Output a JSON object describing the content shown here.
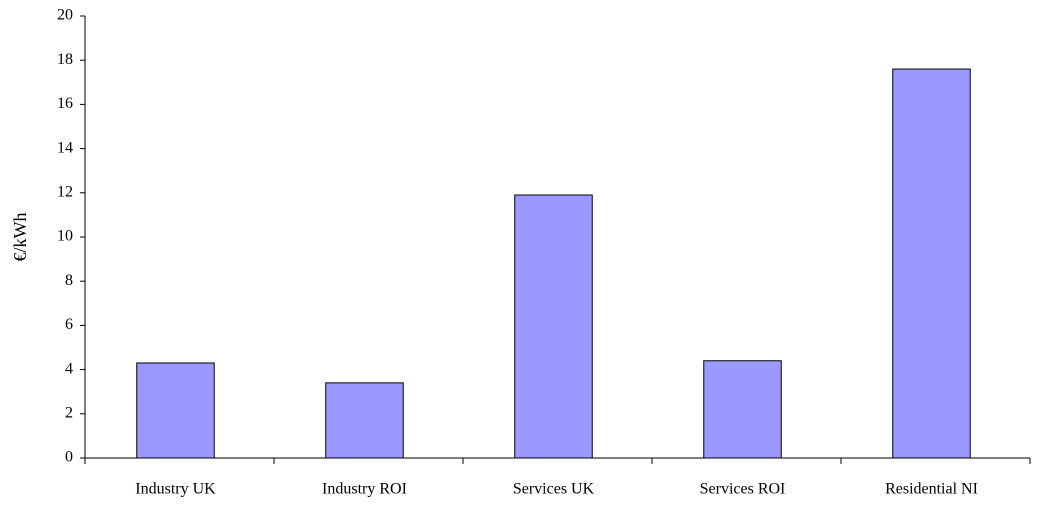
{
  "chart_data": {
    "type": "bar",
    "y_label": "€/kWh",
    "categories": [
      "Industry UK",
      "Industry ROI",
      "Services UK",
      "Services ROI",
      "Residential NI"
    ],
    "values": [
      4.3,
      3.4,
      11.9,
      4.4,
      17.6
    ],
    "color": "#9999ff",
    "ylim": [
      0,
      20
    ],
    "yticks": [
      0,
      2,
      4,
      6,
      8,
      10,
      12,
      14,
      16,
      18,
      20
    ],
    "grid": false
  }
}
